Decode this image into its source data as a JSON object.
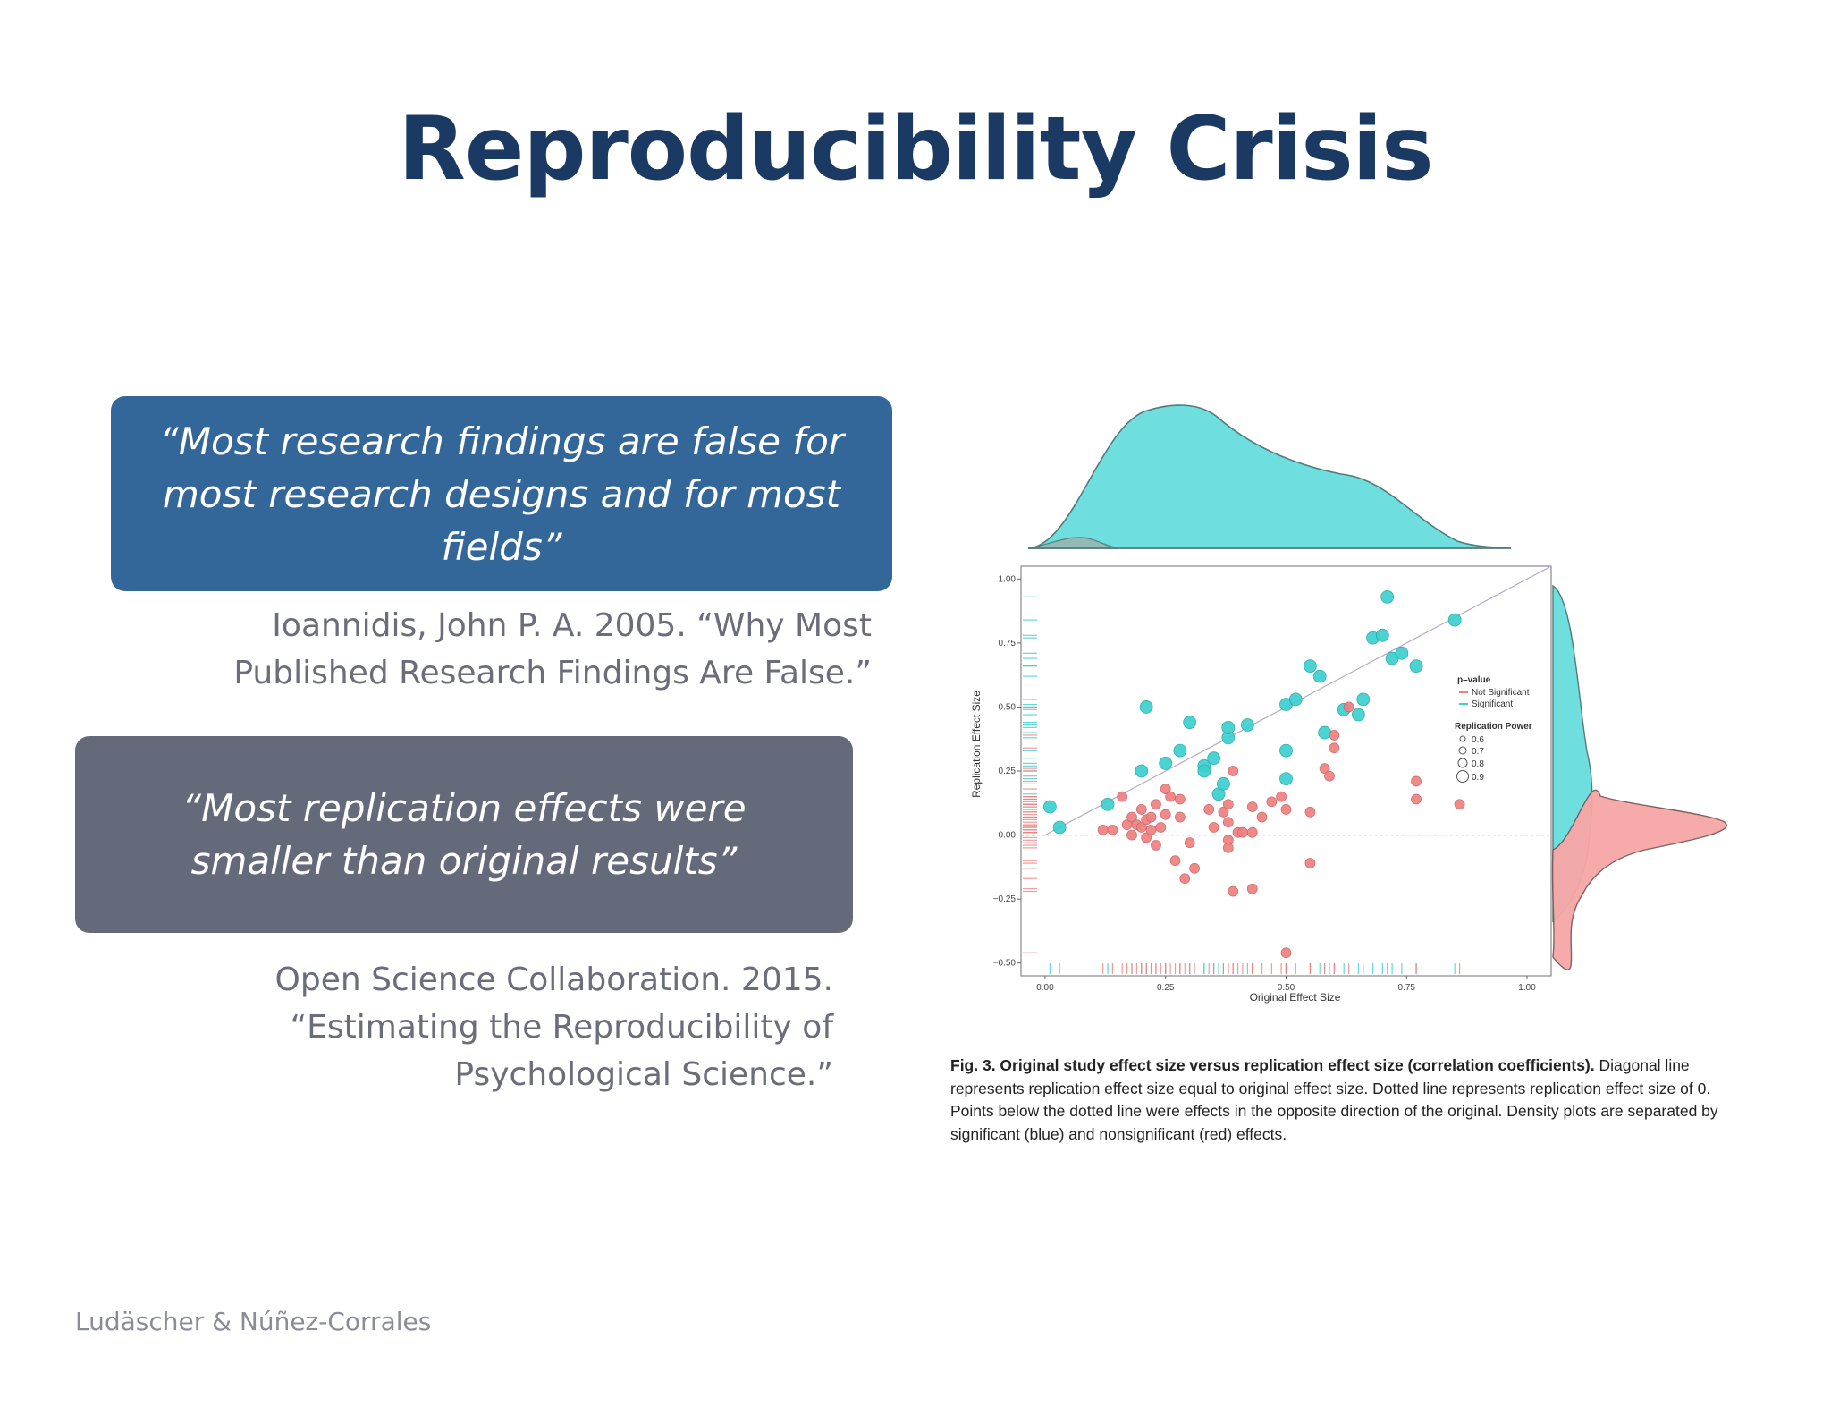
{
  "slide": {
    "title": "Reproducibility Crisis",
    "quote1": "“Most research findings are false for most research designs and for most fields”",
    "citation1_line1": "Ioannidis, John P. A. 2005. “Why Most",
    "citation1_line2": "Published Research Findings Are False.”",
    "quote2": "“Most replication effects were smaller than original results”",
    "citation2_line1": "Open Science Collaboration. 2015.",
    "citation2_line2": "“Estimating the Reproducibility of",
    "citation2_line3": "Psychological Science.”",
    "footer": "Ludäscher & Núñez-Corrales",
    "caption_bold": "Fig. 3. Original study effect size versus replication effect size (correlation coefficients).",
    "caption_text": " Diagonal line represents replication effect size equal to original effect size. Dotted line represents replication effect size of 0. Points below the dotted line were effects in the opposite direction of the original. Density plots are separated by significant (blue) and nonsignificant (red) effects."
  },
  "colors": {
    "title": "#1b3a63",
    "quote1_bg": "#336699",
    "quote2_bg": "#656a7a",
    "significant": "#3ccfcf",
    "not_significant": "#f08080"
  },
  "chart_data": {
    "type": "scatter",
    "xlabel": "Original Effect Size",
    "ylabel": "Replication Effect Size",
    "xlim": [
      -0.05,
      1.05
    ],
    "ylim": [
      -0.55,
      1.05
    ],
    "xticks": [
      "0.00",
      "0.25",
      "0.50",
      "0.75",
      "1.00"
    ],
    "yticks": [
      "1.00",
      "0.75",
      "0.50",
      "0.25",
      "0.00",
      "−0.25",
      "−0.50"
    ],
    "legend": {
      "title_p": "p–value",
      "not_significant": "Not Significant",
      "significant": "Significant",
      "title_power": "Replication Power",
      "power_levels": [
        "0.6",
        "0.7",
        "0.8",
        "0.9"
      ]
    },
    "reference_lines": [
      "diagonal y = x",
      "dotted y = 0"
    ],
    "series": [
      {
        "name": "Significant",
        "points": [
          [
            0.01,
            0.11
          ],
          [
            0.03,
            0.03
          ],
          [
            0.13,
            0.12
          ],
          [
            0.2,
            0.25
          ],
          [
            0.21,
            0.5
          ],
          [
            0.28,
            0.33
          ],
          [
            0.3,
            0.44
          ],
          [
            0.33,
            0.27
          ],
          [
            0.35,
            0.3
          ],
          [
            0.36,
            0.16
          ],
          [
            0.38,
            0.38
          ],
          [
            0.38,
            0.42
          ],
          [
            0.37,
            0.2
          ],
          [
            0.42,
            0.43
          ],
          [
            0.5,
            0.22
          ],
          [
            0.5,
            0.33
          ],
          [
            0.5,
            0.51
          ],
          [
            0.52,
            0.53
          ],
          [
            0.55,
            0.66
          ],
          [
            0.57,
            0.62
          ],
          [
            0.58,
            0.4
          ],
          [
            0.62,
            0.49
          ],
          [
            0.65,
            0.47
          ],
          [
            0.66,
            0.53
          ],
          [
            0.68,
            0.77
          ],
          [
            0.7,
            0.78
          ],
          [
            0.72,
            0.69
          ],
          [
            0.74,
            0.71
          ],
          [
            0.77,
            0.66
          ],
          [
            0.71,
            0.93
          ],
          [
            0.85,
            0.84
          ],
          [
            0.25,
            0.28
          ],
          [
            0.33,
            0.25
          ]
        ]
      },
      {
        "name": "Not Significant",
        "points": [
          [
            0.12,
            0.02
          ],
          [
            0.14,
            0.02
          ],
          [
            0.16,
            0.15
          ],
          [
            0.17,
            0.04
          ],
          [
            0.18,
            0.07
          ],
          [
            0.18,
            0.0
          ],
          [
            0.19,
            0.04
          ],
          [
            0.2,
            0.1
          ],
          [
            0.2,
            0.03
          ],
          [
            0.21,
            0.06
          ],
          [
            0.21,
            -0.01
          ],
          [
            0.22,
            0.02
          ],
          [
            0.22,
            0.07
          ],
          [
            0.23,
            0.12
          ],
          [
            0.23,
            -0.04
          ],
          [
            0.24,
            0.03
          ],
          [
            0.25,
            0.18
          ],
          [
            0.26,
            0.15
          ],
          [
            0.27,
            -0.1
          ],
          [
            0.28,
            0.07
          ],
          [
            0.28,
            0.14
          ],
          [
            0.3,
            -0.03
          ],
          [
            0.31,
            -0.13
          ],
          [
            0.34,
            0.1
          ],
          [
            0.35,
            0.03
          ],
          [
            0.37,
            0.09
          ],
          [
            0.38,
            -0.02
          ],
          [
            0.38,
            -0.05
          ],
          [
            0.38,
            0.12
          ],
          [
            0.39,
            0.25
          ],
          [
            0.39,
            -0.22
          ],
          [
            0.4,
            0.01
          ],
          [
            0.41,
            0.01
          ],
          [
            0.43,
            0.11
          ],
          [
            0.43,
            -0.21
          ],
          [
            0.43,
            0.01
          ],
          [
            0.45,
            0.07
          ],
          [
            0.47,
            0.13
          ],
          [
            0.49,
            0.15
          ],
          [
            0.5,
            0.1
          ],
          [
            0.5,
            -0.46
          ],
          [
            0.55,
            0.09
          ],
          [
            0.55,
            -0.11
          ],
          [
            0.58,
            0.26
          ],
          [
            0.59,
            0.23
          ],
          [
            0.6,
            0.34
          ],
          [
            0.6,
            0.39
          ],
          [
            0.63,
            0.5
          ],
          [
            0.77,
            0.21
          ],
          [
            0.77,
            0.14
          ],
          [
            0.86,
            0.12
          ],
          [
            0.38,
            0.05
          ],
          [
            0.25,
            0.08
          ],
          [
            0.29,
            -0.17
          ]
        ]
      }
    ]
  }
}
